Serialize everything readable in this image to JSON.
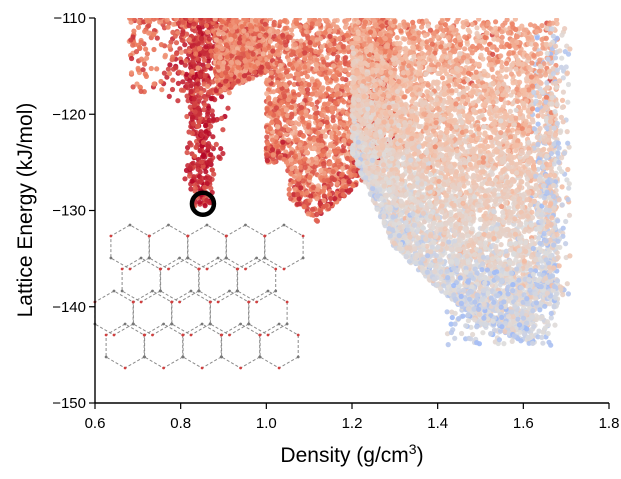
{
  "chart_data": {
    "type": "scatter",
    "title": "",
    "xlabel": "Density (g/cm",
    "xlabel_superscript": "3",
    "xlabel_suffix": ")",
    "ylabel": "Lattice Energy (kJ/mol)",
    "xlim": [
      0.6,
      1.8
    ],
    "ylim": [
      -150,
      -110
    ],
    "x_ticks": [
      "0.6",
      "0.8",
      "1.0",
      "1.2",
      "1.4",
      "1.6",
      "1.8"
    ],
    "y_ticks": [
      "−150",
      "−140",
      "−130",
      "−120",
      "−110"
    ],
    "grid": false,
    "legend": "none",
    "colormap": "coolwarm (color ~ lattice energy rank)",
    "colors": {
      "deep_red": "#b40426",
      "mid_red": "#e7745b",
      "light": "#f3c6b0",
      "neutral": "#dddcdc",
      "blue": "#6f92f3"
    },
    "clusters": [
      {
        "name_hint": "low-density spike",
        "x_center": 0.85,
        "x_spread": 0.03,
        "y_min": -129.5,
        "y_max": -110,
        "color": "#c0282d"
      },
      {
        "name_hint": "main band 0.9-1.2",
        "x_center": 1.05,
        "x_spread": 0.12,
        "y_min": -131,
        "y_max": -110,
        "color": "#e7745b"
      },
      {
        "name_hint": "high-density region",
        "x_center": 1.45,
        "x_spread": 0.15,
        "y_min": -146,
        "y_max": -110,
        "color": "#efbca5"
      }
    ],
    "highlight": {
      "x": 0.852,
      "y": -129.3,
      "marker": "open-circle"
    },
    "inset": "structure-diagram"
  }
}
